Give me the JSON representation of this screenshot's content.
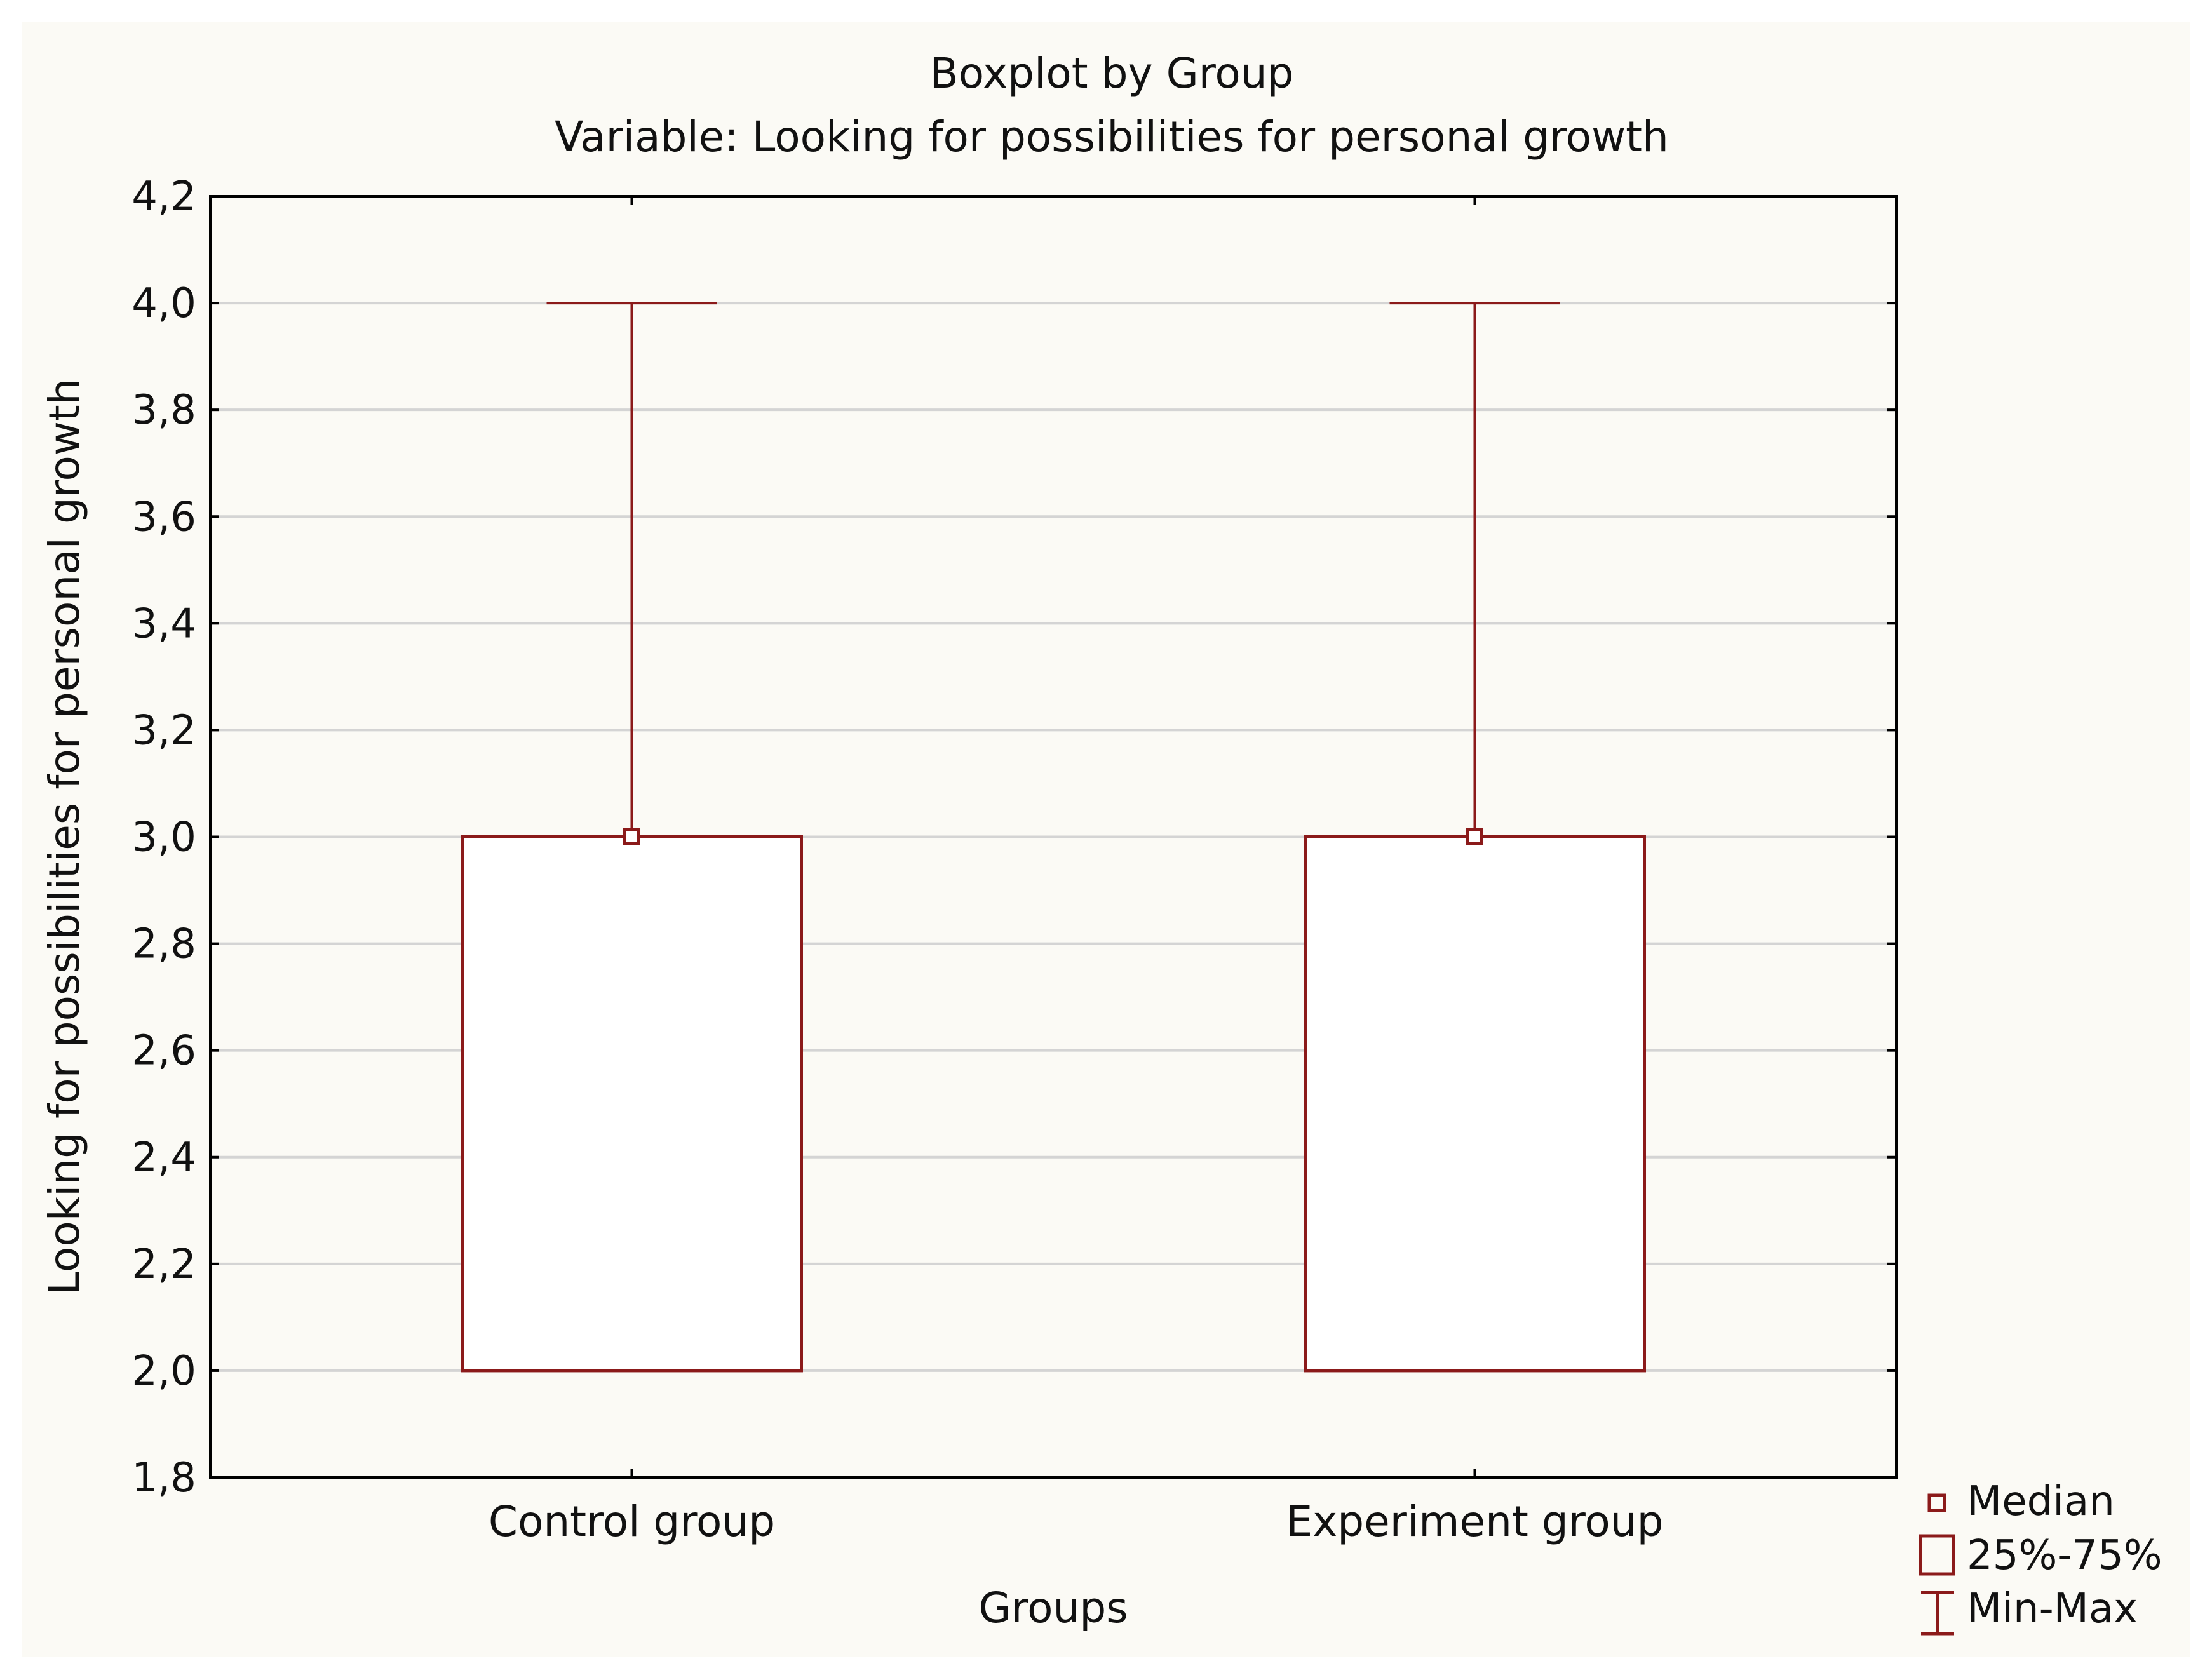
{
  "chart_data": {
    "type": "boxplot",
    "title": "Boxplot by Group",
    "subtitle": "Variable: Looking for possibilities for personal growth",
    "xlabel": "Groups",
    "ylabel": "Looking for possibilities for personal growth",
    "ylim": [
      1.8,
      4.2
    ],
    "yticks": [
      "1,8",
      "2,0",
      "2,2",
      "2,4",
      "2,6",
      "2,8",
      "3,0",
      "3,2",
      "3,4",
      "3,6",
      "3,8",
      "4,0",
      "4,2"
    ],
    "ytick_values": [
      1.8,
      2.0,
      2.2,
      2.4,
      2.6,
      2.8,
      3.0,
      3.2,
      3.4,
      3.6,
      3.8,
      4.0,
      4.2
    ],
    "grid": true,
    "categories": [
      "Control group",
      "Experiment group"
    ],
    "groups": [
      {
        "name": "Control group",
        "median": 3.0,
        "q1": 2.0,
        "q3": 3.0,
        "min": 2.0,
        "max": 4.0
      },
      {
        "name": "Experiment group",
        "median": 3.0,
        "q1": 2.0,
        "q3": 3.0,
        "min": 2.0,
        "max": 4.0
      }
    ],
    "legend": {
      "position": "bottom-right",
      "entries": [
        {
          "label": "Median",
          "symbol": "small-square"
        },
        {
          "label": "25%-75%",
          "symbol": "box"
        },
        {
          "label": "Min-Max",
          "symbol": "whisker"
        }
      ]
    },
    "colors": {
      "series": "#8b1a1a",
      "grid": "#d4d4d4",
      "axis": "#000000"
    }
  }
}
